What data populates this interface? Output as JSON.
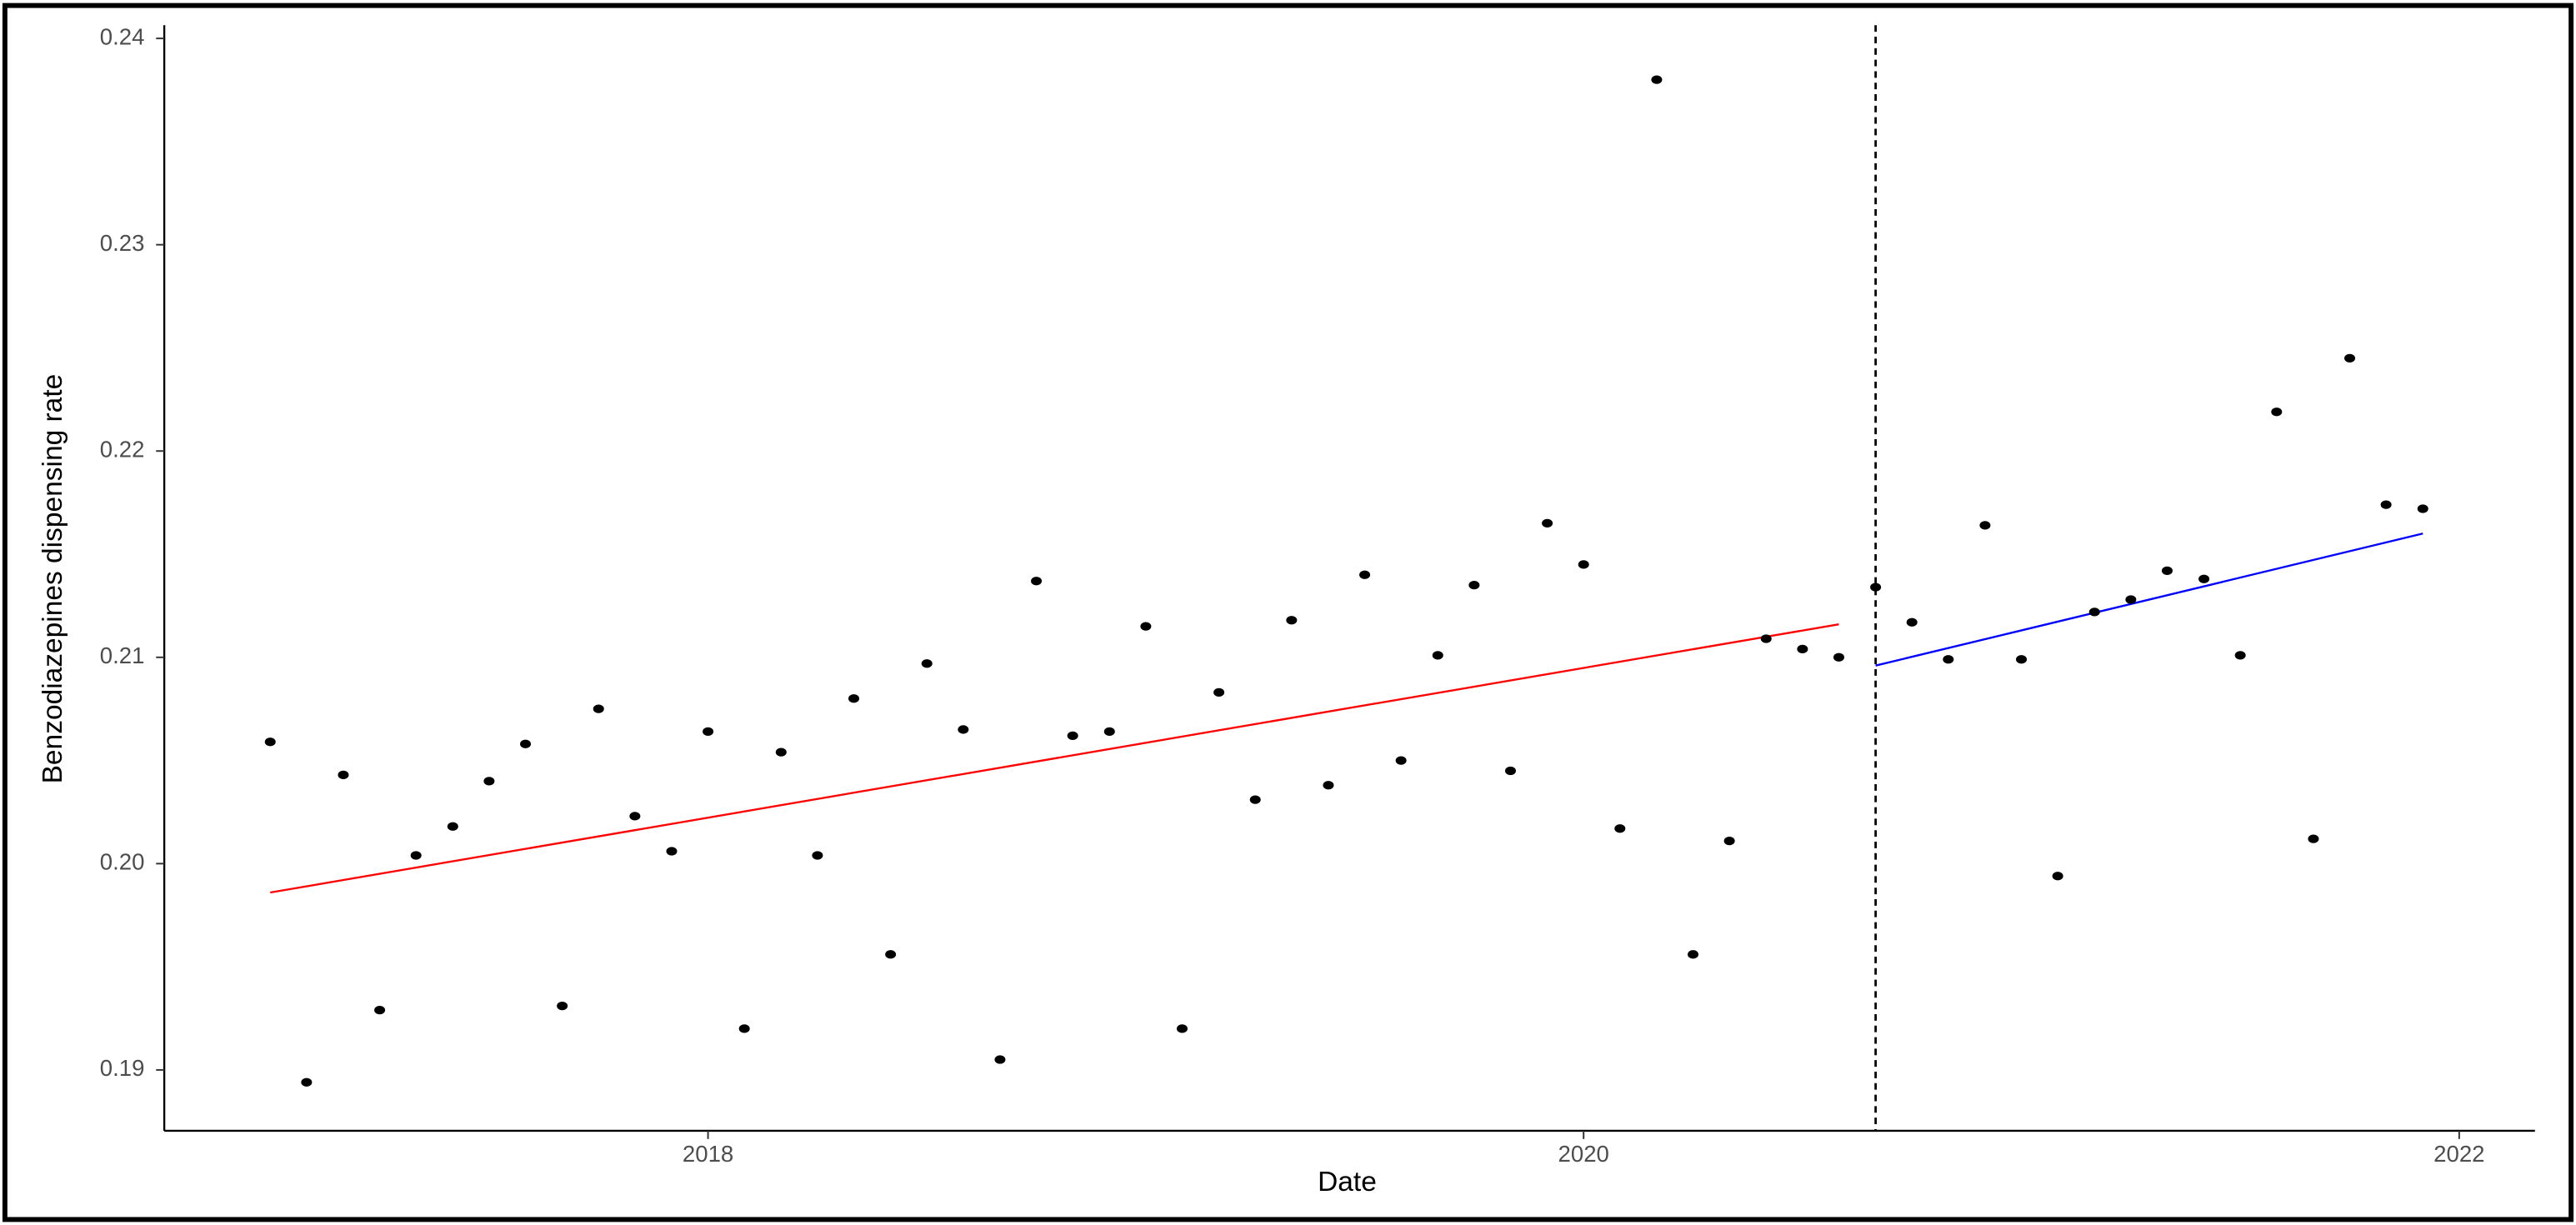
{
  "chart_data": {
    "type": "scatter",
    "xlabel": "Date",
    "ylabel": "Benzodiazepines dispensing rate",
    "xlim": [
      2016.758,
      2022.173
    ],
    "ylim": [
      0.18705,
      0.24064
    ],
    "xticks": [
      2018,
      2020,
      2022
    ],
    "yticks": [
      0.19,
      {
        "value": 0.2,
        "label": "0.20"
      },
      0.21,
      0.22,
      0.23,
      0.24
    ],
    "grid": false,
    "point_color": "#000000",
    "x": [
      2017,
      2017.083,
      2017.167,
      2017.25,
      2017.333,
      2017.417,
      2017.5,
      2017.583,
      2017.667,
      2017.75,
      2017.833,
      2017.917,
      2018,
      2018.083,
      2018.167,
      2018.25,
      2018.333,
      2018.417,
      2018.5,
      2018.583,
      2018.667,
      2018.75,
      2018.833,
      2018.917,
      2019,
      2019.083,
      2019.167,
      2019.25,
      2019.333,
      2019.417,
      2019.5,
      2019.583,
      2019.667,
      2019.75,
      2019.833,
      2019.917,
      2020,
      2020.083,
      2020.167,
      2020.25,
      2020.333,
      2020.417,
      2020.5,
      2020.583,
      2020.667,
      2020.75,
      2020.833,
      2020.917,
      2021,
      2021.083,
      2021.167,
      2021.25,
      2021.333,
      2021.417,
      2021.5,
      2021.583,
      2021.667,
      2021.75,
      2021.833,
      2021.917
    ],
    "values": [
      0.2059,
      0.1894,
      0.2043,
      0.1929,
      0.2004,
      0.2018,
      0.204,
      0.2058,
      0.1931,
      0.2075,
      0.2023,
      0.2006,
      0.2064,
      0.192,
      0.2054,
      0.2004,
      0.208,
      0.1956,
      0.2097,
      0.2065,
      0.1905,
      0.2137,
      0.2062,
      0.2064,
      0.2115,
      0.192,
      0.2083,
      0.2031,
      0.2118,
      0.2038,
      0.214,
      0.205,
      0.2101,
      0.2135,
      0.2045,
      0.2165,
      0.2145,
      0.2017,
      0.238,
      0.1956,
      0.2011,
      0.2109,
      0.2104,
      0.21,
      0.2134,
      0.2117,
      0.2099,
      0.2164,
      0.2099,
      0.1994,
      0.2122,
      0.2128,
      0.2142,
      0.2138,
      0.2101,
      0.2219,
      0.2012,
      0.2245,
      0.2174,
      0.2172
    ],
    "lines": [
      {
        "color": "#ff0000",
        "x": [
          2017,
          2020.583
        ],
        "values": [
          0.1986,
          0.2116
        ]
      },
      {
        "color": "#0000ff",
        "x": [
          2020.667,
          2021.917
        ],
        "values": [
          0.2096,
          0.216
        ]
      }
    ],
    "vline": {
      "x": 2020.667,
      "style": "dashed",
      "color": "#000000"
    }
  }
}
